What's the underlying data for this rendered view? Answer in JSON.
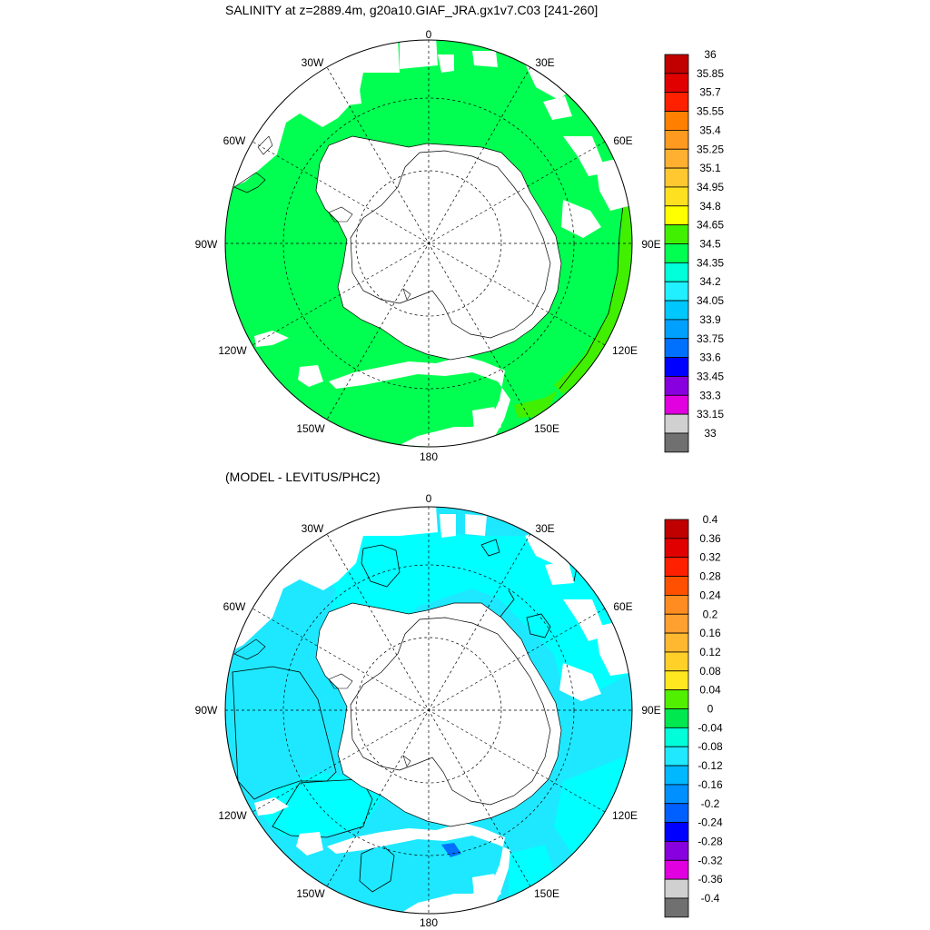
{
  "top_panel": {
    "title": "SALINITY at z=2889.4m, g20a10.GIAF_JRA.gx1v7.C03 [241-260]",
    "lon_labels": [
      "0",
      "30E",
      "60E",
      "90E",
      "120E",
      "150E",
      "180",
      "150W",
      "120W",
      "90W",
      "60W",
      "30W"
    ],
    "colorbar": {
      "labels": [
        "36",
        "35.85",
        "35.7",
        "35.55",
        "35.4",
        "35.25",
        "35.1",
        "34.95",
        "34.8",
        "34.65",
        "34.5",
        "34.35",
        "34.2",
        "34.05",
        "33.9",
        "33.75",
        "33.6",
        "33.45",
        "33.3",
        "33.15",
        "33"
      ],
      "colors": [
        "#c00000",
        "#e00000",
        "#ff2000",
        "#ff8000",
        "#ff9a20",
        "#ffb030",
        "#ffc830",
        "#ffe020",
        "#ffff00",
        "#40f000",
        "#00ff50",
        "#00ffd8",
        "#20f0ff",
        "#00c8ff",
        "#00a0ff",
        "#0070ff",
        "#0000ff",
        "#8800dd",
        "#e000e0",
        "#d0d0d0",
        "#707070"
      ]
    }
  },
  "bottom_panel": {
    "title": "(MODEL - LEVITUS/PHC2)",
    "lon_labels": [
      "0",
      "30E",
      "60E",
      "90E",
      "120E",
      "150E",
      "180",
      "150W",
      "120W",
      "90W",
      "60W",
      "30W"
    ],
    "colorbar": {
      "labels": [
        "0.4",
        "0.36",
        "0.32",
        "0.28",
        "0.24",
        "0.2",
        "0.16",
        "0.12",
        "0.08",
        "0.04",
        "0",
        "-0.04",
        "-0.08",
        "-0.12",
        "-0.16",
        "-0.2",
        "-0.24",
        "-0.28",
        "-0.32",
        "-0.36",
        "-0.4"
      ],
      "colors": [
        "#c00000",
        "#e00000",
        "#ff2000",
        "#ff5000",
        "#ff8c20",
        "#ffa030",
        "#ffb830",
        "#ffd028",
        "#ffe820",
        "#50f000",
        "#00e850",
        "#00ffd8",
        "#20e8ff",
        "#00b8ff",
        "#0090ff",
        "#0060ff",
        "#0000ff",
        "#8800dd",
        "#e000e0",
        "#d0d0d0",
        "#707070"
      ]
    }
  },
  "colors": {
    "top_ocean": "#00ff50",
    "top_ocean_fresh_band": "#40f000",
    "bottom_ocean": "#1ee8ff",
    "bottom_ocean_light": "#00ffff",
    "bottom_ocean_dark": "#0070ff",
    "land_missing": "#ffffff",
    "lines": "#000000"
  }
}
